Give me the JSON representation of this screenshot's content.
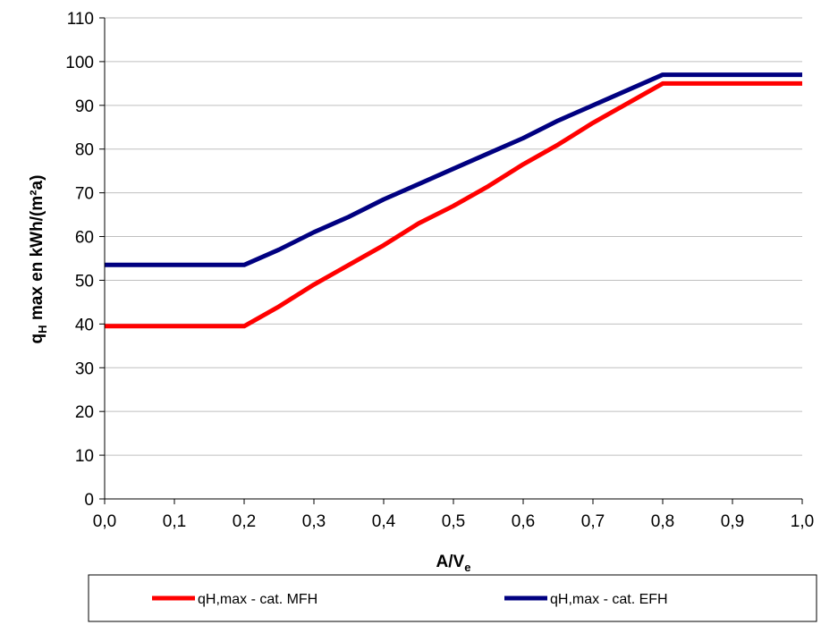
{
  "chart_data": {
    "type": "line",
    "xlabel": "A/V",
    "xlabel_sub": "e",
    "ylabel": "q",
    "ylabel_sub": "H",
    "ylabel_rest": " max en kWh/(m²a)",
    "x_ticks": [
      "0,0",
      "0,1",
      "0,2",
      "0,3",
      "0,4",
      "0,5",
      "0,6",
      "0,7",
      "0,8",
      "0,9",
      "1,0"
    ],
    "y_ticks": [
      "0",
      "10",
      "20",
      "30",
      "40",
      "50",
      "60",
      "70",
      "80",
      "90",
      "100",
      "110"
    ],
    "xlim": [
      0,
      1
    ],
    "ylim": [
      0,
      110
    ],
    "grid": "horizontal",
    "legend_position": "bottom",
    "series": [
      {
        "name": "qH,max - cat. MFH",
        "color": "#ff0000",
        "x": [
          0.0,
          0.2,
          0.25,
          0.3,
          0.35,
          0.4,
          0.45,
          0.5,
          0.55,
          0.6,
          0.65,
          0.7,
          0.75,
          0.8,
          0.85,
          0.9,
          0.95,
          1.0
        ],
        "y": [
          39.5,
          39.5,
          44,
          49,
          53.5,
          58,
          63,
          67,
          71.5,
          76.5,
          81,
          86,
          90.5,
          95,
          95,
          95,
          95,
          95
        ]
      },
      {
        "name": "qH,max - cat. EFH",
        "color": "#000080",
        "x": [
          0.0,
          0.2,
          0.25,
          0.3,
          0.35,
          0.4,
          0.45,
          0.5,
          0.55,
          0.6,
          0.65,
          0.7,
          0.75,
          0.8,
          0.85,
          0.9,
          0.95,
          1.0
        ],
        "y": [
          53.5,
          53.5,
          57,
          61,
          64.5,
          68.5,
          72,
          75.5,
          79,
          82.5,
          86.5,
          90,
          93.5,
          97,
          97,
          97,
          97,
          97
        ]
      }
    ]
  }
}
